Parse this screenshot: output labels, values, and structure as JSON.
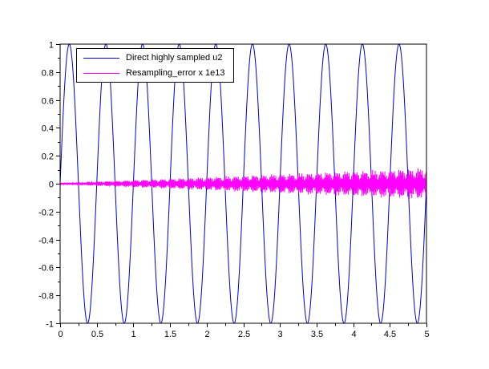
{
  "figure": {
    "background": "#ffffff",
    "frame_color": "#000000",
    "tick_color": "#000000",
    "label_color": "#000000"
  },
  "chart_data": {
    "type": "line",
    "title": "",
    "xlabel": "",
    "ylabel": "",
    "xlim": [
      0,
      5
    ],
    "ylim": [
      -1,
      1
    ],
    "grid": false,
    "legend_position": "upper-left",
    "x_ticks": [
      0,
      0.5,
      1,
      1.5,
      2,
      2.5,
      3,
      3.5,
      4,
      4.5,
      5
    ],
    "x_tick_labels": [
      "0",
      "0.5",
      "1",
      "1.5",
      "2",
      "2.5",
      "3",
      "3.5",
      "4",
      "4.5",
      "5"
    ],
    "x_minor_step": 0.25,
    "y_ticks": [
      -1,
      -0.8,
      -0.6,
      -0.4,
      -0.2,
      0,
      0.2,
      0.4,
      0.6,
      0.8,
      1
    ],
    "y_tick_labels": [
      "-1",
      "-0.8",
      "-0.6",
      "-0.4",
      "-0.2",
      "0",
      "0.2",
      "0.4",
      "0.6",
      "0.8",
      "1"
    ],
    "y_minor_step": 0.1,
    "series": [
      {
        "name": "Direct highly sampled u2",
        "color": "#0000d0",
        "type": "sine",
        "amplitude": 1,
        "period": 0.5,
        "phase": 0
      },
      {
        "name": "Resampling_error x 1e13",
        "color": "#ff00ff",
        "type": "modulated-noise",
        "base_amplitude": 0.004,
        "amplitude_growth_per_x": 0.019,
        "burst_period": 0.25,
        "max_amplitude": 0.1
      }
    ]
  }
}
